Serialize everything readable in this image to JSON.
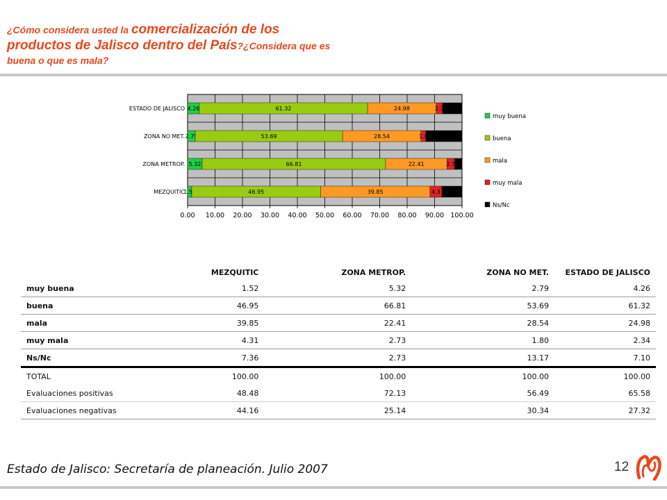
{
  "title": {
    "part1": "¿Cómo considera usted la ",
    "part2": "comercialización de los productos de Jalisco dentro del País",
    "part3": "?¿Considera que es buena o que es mala?"
  },
  "chart_data": {
    "type": "bar",
    "orientation": "horizontal",
    "stacked": true,
    "categories": [
      "ESTADO DE JALISCO",
      "ZONA NO MET.",
      "ZONA METROP.",
      "MEZQUITIC"
    ],
    "series": [
      {
        "name": "muy buena",
        "color": "#22cc44",
        "values": [
          4.26,
          2.79,
          5.32,
          1.52
        ],
        "labels": [
          "4.26",
          "2.79",
          "5.32",
          "1.52"
        ]
      },
      {
        "name": "buena",
        "color": "#99cc11",
        "values": [
          61.32,
          53.69,
          66.81,
          46.95
        ],
        "labels": [
          "61.32",
          "53.69",
          "66.81",
          "46.95"
        ]
      },
      {
        "name": "mala",
        "color": "#ff9922",
        "values": [
          24.98,
          28.54,
          22.41,
          39.85
        ],
        "labels": [
          "24.98",
          "28.54",
          "22.41",
          "39.85"
        ]
      },
      {
        "name": "muy mala",
        "color": "#dd2222",
        "values": [
          2.34,
          1.8,
          2.73,
          4.31
        ],
        "labels": [
          "2.3",
          "1.8",
          "2.7",
          "4.3"
        ]
      },
      {
        "name": "Ns/Nc",
        "color": "#000000",
        "values": [
          7.1,
          13.17,
          2.73,
          7.36
        ],
        "labels": [
          "",
          "",
          "",
          ""
        ]
      }
    ],
    "xlim": [
      0,
      100
    ],
    "xticks": [
      "0.00",
      "10.00",
      "20.00",
      "30.00",
      "40.00",
      "50.00",
      "60.00",
      "70.00",
      "80.00",
      "90.00",
      "100.00"
    ],
    "grid": true,
    "legend_position": "right",
    "plot_background": "#c0c0c0"
  },
  "table": {
    "headers": [
      "MEZQUITIC",
      "ZONA METROP.",
      "ZONA NO MET.",
      "ESTADO DE JALISCO"
    ],
    "rows": [
      {
        "label": "muy buena",
        "values": [
          "1.52",
          "5.32",
          "2.79",
          "4.26"
        ]
      },
      {
        "label": "buena",
        "values": [
          "46.95",
          "66.81",
          "53.69",
          "61.32"
        ]
      },
      {
        "label": "mala",
        "values": [
          "39.85",
          "22.41",
          "28.54",
          "24.98"
        ]
      },
      {
        "label": "muy mala",
        "values": [
          "4.31",
          "2.73",
          "1.80",
          "2.34"
        ]
      },
      {
        "label": "Ns/Nc",
        "values": [
          "7.36",
          "2.73",
          "13.17",
          "7.10"
        ]
      }
    ],
    "summary": [
      {
        "label": "TOTAL",
        "values": [
          "100.00",
          "100.00",
          "100.00",
          "100.00"
        ]
      },
      {
        "label": "Evaluaciones positivas",
        "values": [
          "48.48",
          "72.13",
          "56.49",
          "65.58"
        ]
      },
      {
        "label": "Evaluaciones negativas",
        "values": [
          "44.16",
          "25.14",
          "30.34",
          "27.32"
        ]
      }
    ]
  },
  "footer": {
    "source": "Estado de Jalisco: Secretaría de planeación. Julio 2007",
    "page_number": "12"
  },
  "logo": {
    "color": "#e8481c"
  }
}
